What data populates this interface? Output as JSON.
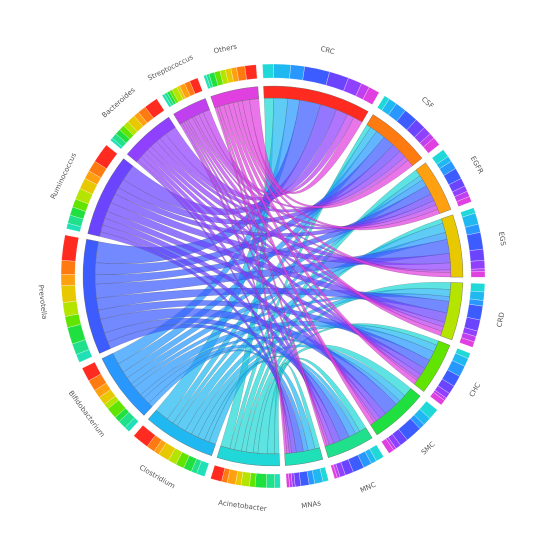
{
  "chart_data": {
    "type": "chord",
    "categories": [
      "CRC",
      "CSF",
      "EGFR",
      "EGS",
      "CRD",
      "CHC",
      "SMC",
      "MNC",
      "MNAs"
    ],
    "category_colors": [
      "#ff2a20",
      "#ff7a10",
      "#ffa010",
      "#e8c800",
      "#b4e400",
      "#60e400",
      "#20e040",
      "#20e08c",
      "#20e0b8"
    ],
    "series": [
      {
        "name": "Acinetobacter",
        "color": "#20d8d8",
        "values": [
          4,
          2,
          3,
          2,
          3,
          2,
          4,
          3,
          2
        ]
      },
      {
        "name": "Clostridium",
        "color": "#20b8f0",
        "values": [
          6,
          3,
          2,
          4,
          3,
          3,
          3,
          2,
          3
        ]
      },
      {
        "name": "Bifidobacterium",
        "color": "#2898ff",
        "values": [
          5,
          4,
          3,
          3,
          2,
          4,
          2,
          3,
          2
        ]
      },
      {
        "name": "Prevotella",
        "color": "#3c5cff",
        "values": [
          9,
          5,
          4,
          6,
          5,
          4,
          6,
          4,
          3
        ]
      },
      {
        "name": "Ruminococcus",
        "color": "#6a44ff",
        "values": [
          7,
          4,
          3,
          4,
          4,
          3,
          3,
          3,
          2
        ]
      },
      {
        "name": "Bacteroides",
        "color": "#9040ff",
        "values": [
          5,
          3,
          2,
          3,
          2,
          2,
          2,
          2,
          1
        ]
      },
      {
        "name": "Streptococcus",
        "color": "#c040f0",
        "values": [
          3,
          2,
          2,
          1,
          2,
          1,
          1,
          1,
          1
        ]
      },
      {
        "name": "Others",
        "color": "#e040e0",
        "values": [
          4,
          3,
          2,
          2,
          2,
          2,
          2,
          1,
          1
        ]
      }
    ]
  }
}
